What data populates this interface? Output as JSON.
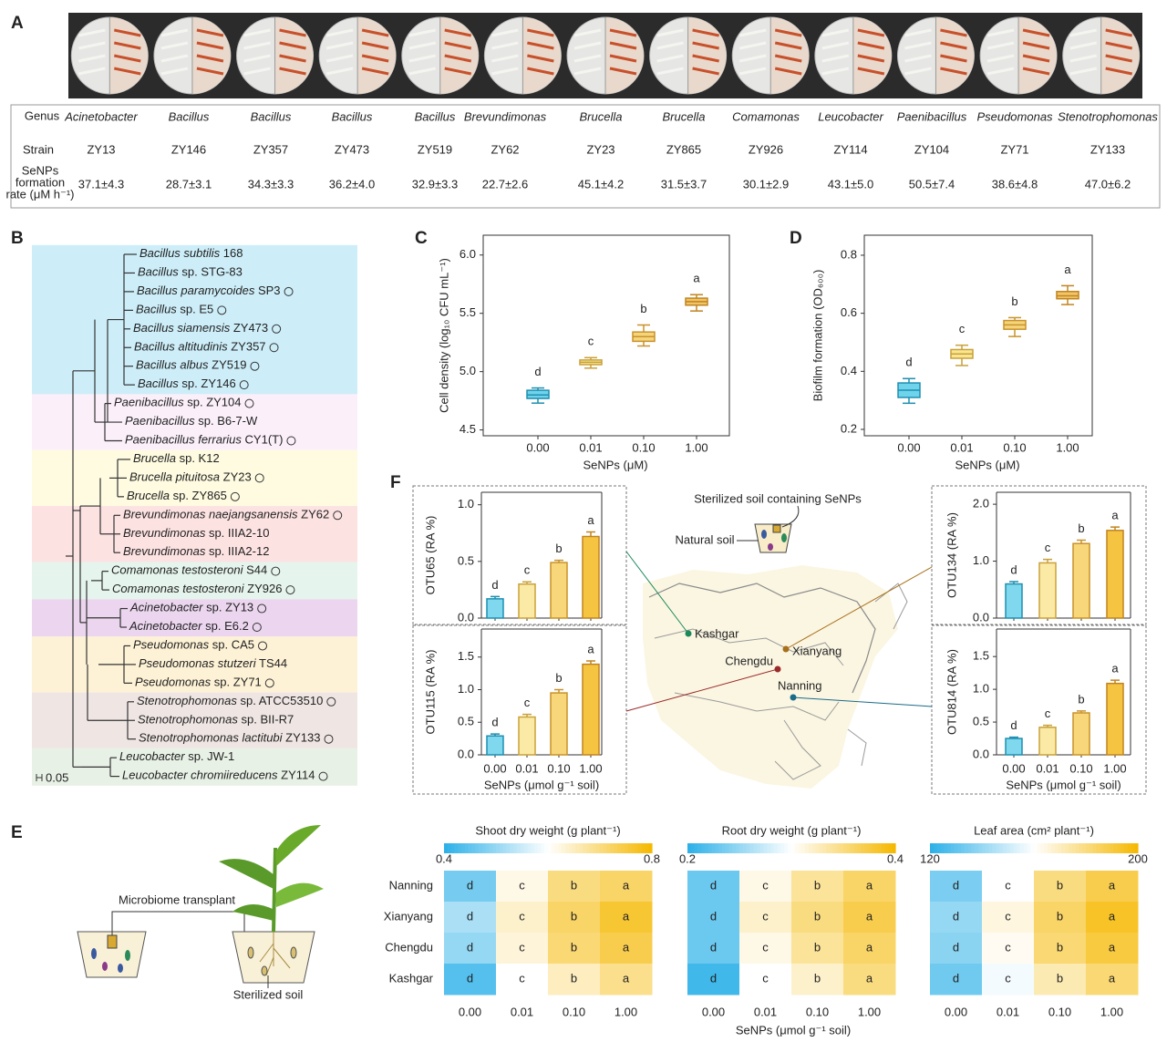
{
  "panel_labels": [
    "A",
    "B",
    "C",
    "D",
    "E",
    "F"
  ],
  "panel_a": {
    "row_headers": {
      "genus": "Genus",
      "strain": "Strain",
      "rate": [
        "SeNPs",
        "formation",
        "rate (μM h⁻¹)"
      ]
    },
    "genus": [
      "Acinetobacter",
      "Bacillus",
      "Bacillus",
      "Bacillus",
      "Bacillus",
      "Brevundimonas",
      "Brucella",
      "Brucella",
      "Comamonas",
      "Leucobacter",
      "Paenibacillus",
      "Pseudomonas",
      "Stenotrophomonas"
    ],
    "strain": [
      "ZY13",
      "ZY146",
      "ZY357",
      "ZY473",
      "ZY519",
      "ZY62",
      "ZY23",
      "ZY865",
      "ZY926",
      "ZY114",
      "ZY104",
      "ZY71",
      "ZY133"
    ],
    "rate": [
      "37.1±4.3",
      "28.7±3.1",
      "34.3±3.3",
      "36.2±4.0",
      "32.9±3.3",
      "22.7±2.6",
      "45.1±4.2",
      "31.5±3.7",
      "30.1±2.9",
      "43.1±5.0",
      "50.5±7.4",
      "38.6±4.8",
      "47.0±6.2"
    ]
  },
  "panel_b": {
    "scale": "0.05",
    "clades": [
      {
        "color": "#cdeef9",
        "taxa": [
          {
            "italic": "Bacillus subtilis",
            "plain": "168",
            "circle": false
          },
          {
            "italic": "Bacillus",
            "plain": "sp. STG-83",
            "circle": false
          },
          {
            "italic": "Bacillus paramycoides",
            "plain": "SP3",
            "circle": true
          },
          {
            "italic": "Bacillus",
            "plain": "sp. E5",
            "circle": true
          },
          {
            "italic": "Bacillus siamensis",
            "plain": "ZY473",
            "circle": true
          },
          {
            "italic": "Bacillus altitudinis",
            "plain": "ZY357",
            "circle": true
          },
          {
            "italic": "Bacillus albus",
            "plain": "ZY519",
            "circle": true
          },
          {
            "italic": "Bacillus",
            "plain": "sp. ZY146",
            "circle": true
          }
        ]
      },
      {
        "color": "#fbf0fa",
        "taxa": [
          {
            "italic": "Paenibacillus",
            "plain": "sp. ZY104",
            "circle": true
          },
          {
            "italic": "Paenibacillus",
            "plain": "sp. B6-7-W",
            "circle": false
          },
          {
            "italic": "Paenibacillus ferrarius",
            "plain": "CY1(T)",
            "circle": true
          }
        ]
      },
      {
        "color": "#fefbe0",
        "taxa": [
          {
            "italic": "Brucella",
            "plain": "sp. K12",
            "circle": false
          },
          {
            "italic": "Brucella pituitosa",
            "plain": "ZY23",
            "circle": true
          },
          {
            "italic": "Brucella",
            "plain": "sp. ZY865",
            "circle": true
          }
        ]
      },
      {
        "color": "#fde2e2",
        "taxa": [
          {
            "italic": "Brevundimonas naejangsanensis",
            "plain": "ZY62",
            "circle": true
          },
          {
            "italic": "Brevundimonas",
            "plain": "sp. IIIA2-10",
            "circle": false
          },
          {
            "italic": "Brevundimonas",
            "plain": "sp. IIIA2-12",
            "circle": false
          }
        ]
      },
      {
        "color": "#e5f4ec",
        "taxa": [
          {
            "italic": "Comamonas testosteroni",
            "plain": "S44",
            "circle": true
          },
          {
            "italic": "Comamonas testosteroni",
            "plain": "ZY926",
            "circle": true
          }
        ]
      },
      {
        "color": "#ecd6ef",
        "taxa": [
          {
            "italic": "Acinetobacter",
            "plain": "sp. ZY13",
            "circle": true
          },
          {
            "italic": "Acinetobacter",
            "plain": "sp. E6.2",
            "circle": true
          }
        ]
      },
      {
        "color": "#fef2d6",
        "taxa": [
          {
            "italic": "Pseudomonas",
            "plain": "sp. CA5",
            "circle": true
          },
          {
            "italic": "Pseudomonas stutzeri",
            "plain": "TS44",
            "circle": false
          },
          {
            "italic": "Pseudomonas",
            "plain": "sp. ZY71",
            "circle": true
          }
        ]
      },
      {
        "color": "#efe6e4",
        "taxa": [
          {
            "italic": "Stenotrophomonas",
            "plain": "sp. ATCC53510",
            "circle": true
          },
          {
            "italic": "Stenotrophomonas",
            "plain": "sp. BII-R7",
            "circle": false
          },
          {
            "italic": "Stenotrophomonas lactitubi",
            "plain": "ZY133",
            "circle": true
          }
        ]
      },
      {
        "color": "#e8f1e6",
        "taxa": [
          {
            "italic": "Leucobacter",
            "plain": "sp. JW-1",
            "circle": false
          },
          {
            "italic": "Leucobacter chromiireducens",
            "plain": "ZY114",
            "circle": true
          }
        ]
      }
    ]
  },
  "map": {
    "sterilized": "Sterilized soil containing SeNPs",
    "natural": "Natural soil",
    "cities": [
      {
        "name": "Kashgar",
        "color": "#1a8a5a"
      },
      {
        "name": "Chengdu",
        "color": "#9b2b2b"
      },
      {
        "name": "Xianyang",
        "color": "#a8701a"
      },
      {
        "name": "Nanning",
        "color": "#1a6a8a"
      }
    ]
  },
  "panel_e": {
    "transplant": "Microbiome transplant",
    "sterilized": "Sterilized soil"
  },
  "heatmap_xlabel": "SeNPs (μmol g⁻¹ soil)",
  "chart_data": [
    {
      "type": "box",
      "ylabel": "Cell density (log₁₀ CFU mL⁻¹)",
      "xlabel": "SeNPs (μM)",
      "categories": [
        "0.00",
        "0.01",
        "0.10",
        "1.00"
      ],
      "min": [
        4.73,
        5.03,
        5.22,
        5.52
      ],
      "q1": [
        4.77,
        5.06,
        5.26,
        5.57
      ],
      "median": [
        4.8,
        5.08,
        5.3,
        5.6
      ],
      "q3": [
        4.84,
        5.1,
        5.34,
        5.63
      ],
      "max": [
        4.86,
        5.12,
        5.4,
        5.66
      ],
      "letters": [
        "d",
        "c",
        "b",
        "a"
      ],
      "colors": [
        "#6fd3ec",
        "#f8e690",
        "#f5d57c",
        "#f2c466"
      ],
      "edge_colors": [
        "#1f8fb0",
        "#c9a13a",
        "#c9922a",
        "#c08420"
      ],
      "ylim": [
        4.45,
        6.17
      ],
      "yticks": [
        4.5,
        {
          "value": 5,
          "label": "5.0"
        },
        5.5,
        {
          "value": 6,
          "label": "6.0"
        }
      ]
    },
    {
      "type": "box",
      "ylabel": "Biofilm formation (OD₆₀₀)",
      "xlabel": "SeNPs (μM)",
      "categories": [
        "0.00",
        "0.01",
        "0.10",
        "1.00"
      ],
      "min": [
        0.29,
        0.42,
        0.52,
        0.63
      ],
      "q1": [
        0.31,
        0.445,
        0.545,
        0.65
      ],
      "median": [
        0.335,
        0.46,
        0.56,
        0.66
      ],
      "q3": [
        0.36,
        0.475,
        0.575,
        0.675
      ],
      "max": [
        0.375,
        0.49,
        0.585,
        0.695
      ],
      "letters": [
        "d",
        "c",
        "b",
        "a"
      ],
      "colors": [
        "#6fd3ec",
        "#f8e690",
        "#f5d57c",
        "#f2c466"
      ],
      "edge_colors": [
        "#1f8fb0",
        "#c9a13a",
        "#c9922a",
        "#c08420"
      ],
      "ylim": [
        0.178,
        0.869
      ],
      "yticks": [
        0.2,
        0.4,
        0.6,
        0.8
      ]
    },
    {
      "type": "bar",
      "ylabel": "OTU65 (RA %)",
      "values": [
        0.17,
        0.3,
        0.49,
        0.72
      ],
      "errors": [
        0.02,
        0.02,
        0.02,
        0.04
      ],
      "letters": [
        "d",
        "c",
        "b",
        "a"
      ],
      "colors": [
        "#7fd8ee",
        "#fbeaa6",
        "#f7d77a",
        "#f5c542"
      ],
      "edge_colors": [
        "#1f8fb0",
        "#c9a13a",
        "#c9922a",
        "#c08420"
      ],
      "ylim": [
        0,
        1.11
      ],
      "yticks": [
        {
          "value": 0,
          "label": "0.0"
        },
        0.5,
        {
          "value": 1,
          "label": "1.0"
        }
      ]
    },
    {
      "type": "bar",
      "ylabel": "OTU115 (RA %)",
      "xlabel": "SeNPs (μmol g⁻¹ soil)",
      "categories": [
        "0.00",
        "0.01",
        "0.10",
        "1.00"
      ],
      "values": [
        0.29,
        0.58,
        0.95,
        1.39
      ],
      "errors": [
        0.03,
        0.04,
        0.05,
        0.05
      ],
      "letters": [
        "d",
        "c",
        "b",
        "a"
      ],
      "colors": [
        "#7fd8ee",
        "#fbeaa6",
        "#f7d77a",
        "#f5c542"
      ],
      "edge_colors": [
        "#1f8fb0",
        "#c9a13a",
        "#c9922a",
        "#c08420"
      ],
      "ylim": [
        0,
        1.93
      ],
      "yticks": [
        {
          "value": 0,
          "label": "0.0"
        },
        0.5,
        {
          "value": 1,
          "label": "1.0"
        },
        1.5
      ]
    },
    {
      "type": "bar",
      "ylabel": "OTU134 (RA %)",
      "values": [
        0.6,
        0.97,
        1.31,
        1.54
      ],
      "errors": [
        0.04,
        0.06,
        0.06,
        0.06
      ],
      "letters": [
        "d",
        "c",
        "b",
        "a"
      ],
      "colors": [
        "#7fd8ee",
        "#fbeaa6",
        "#f7d77a",
        "#f5c542"
      ],
      "edge_colors": [
        "#1f8fb0",
        "#c9a13a",
        "#c9922a",
        "#c08420"
      ],
      "ylim": [
        0,
        2.21
      ],
      "yticks": [
        {
          "value": 0,
          "label": "0.0"
        },
        {
          "value": 1,
          "label": "1.0"
        },
        {
          "value": 2,
          "label": "2.0"
        }
      ]
    },
    {
      "type": "bar",
      "ylabel": "OTU814 (RA %)",
      "xlabel": "SeNPs (μmol g⁻¹ soil)",
      "categories": [
        "0.00",
        "0.01",
        "0.10",
        "1.00"
      ],
      "values": [
        0.25,
        0.42,
        0.64,
        1.09
      ],
      "errors": [
        0.02,
        0.03,
        0.03,
        0.05
      ],
      "letters": [
        "d",
        "c",
        "b",
        "a"
      ],
      "colors": [
        "#7fd8ee",
        "#fbeaa6",
        "#f7d77a",
        "#f5c542"
      ],
      "edge_colors": [
        "#1f8fb0",
        "#c9a13a",
        "#c9922a",
        "#c08420"
      ],
      "ylim": [
        0,
        1.92
      ],
      "yticks": [
        {
          "value": 0,
          "label": "0.0"
        },
        0.5,
        {
          "value": 1,
          "label": "1.0"
        },
        1.5
      ]
    },
    {
      "type": "heatmap",
      "title": "Shoot dry weight (g plant⁻¹)",
      "rows": [
        "Nanning",
        "Xianyang",
        "Chengdu",
        "Kashgar"
      ],
      "columns": [
        "0.00",
        "0.01",
        "0.10",
        "1.00"
      ],
      "values": [
        [
          0.47,
          0.62,
          0.7,
          0.72
        ],
        [
          0.52,
          0.64,
          0.72,
          0.76
        ],
        [
          0.5,
          0.63,
          0.71,
          0.74
        ],
        [
          0.44,
          0.6,
          0.65,
          0.69
        ]
      ],
      "labels": [
        [
          "d",
          "c",
          "b",
          "a"
        ],
        [
          "d",
          "c",
          "b",
          "a"
        ],
        [
          "d",
          "c",
          "b",
          "a"
        ],
        [
          "d",
          "c",
          "b",
          "a"
        ]
      ],
      "clim": [
        0.4,
        0.8
      ],
      "colorbar_ticks": [
        0.4,
        0.8
      ],
      "colors": [
        "#2bb0e8",
        "#ffffff",
        "#f5b800"
      ]
    },
    {
      "type": "heatmap",
      "title": "Root dry weight (g plant⁻¹)",
      "columns": [
        "0.00",
        "0.01",
        "0.10",
        "1.00"
      ],
      "values": [
        [
          0.23,
          0.31,
          0.34,
          0.36
        ],
        [
          0.23,
          0.32,
          0.35,
          0.37
        ],
        [
          0.23,
          0.31,
          0.34,
          0.36
        ],
        [
          0.21,
          0.3,
          0.32,
          0.35
        ]
      ],
      "labels": [
        [
          "d",
          "c",
          "b",
          "a"
        ],
        [
          "d",
          "c",
          "b",
          "a"
        ],
        [
          "d",
          "c",
          "b",
          "a"
        ],
        [
          "d",
          "c",
          "b",
          "a"
        ]
      ],
      "clim": [
        0.2,
        0.4
      ],
      "colorbar_ticks": [
        0.2,
        0.4
      ],
      "colors": [
        "#2bb0e8",
        "#ffffff",
        "#f5b800"
      ]
    },
    {
      "type": "heatmap",
      "title": "Leaf area (cm² plant⁻¹)",
      "columns": [
        "0.00",
        "0.01",
        "0.10",
        "1.00"
      ],
      "values": [
        [
          135,
          160,
          180,
          188
        ],
        [
          140,
          165,
          184,
          194
        ],
        [
          138,
          162,
          182,
          190
        ],
        [
          133,
          158,
          172,
          182
        ]
      ],
      "labels": [
        [
          "d",
          "c",
          "b",
          "a"
        ],
        [
          "d",
          "c",
          "b",
          "a"
        ],
        [
          "d",
          "c",
          "b",
          "a"
        ],
        [
          "d",
          "c",
          "b",
          "a"
        ]
      ],
      "clim": [
        120,
        200
      ],
      "colorbar_ticks": [
        120,
        200
      ],
      "colors": [
        "#2bb0e8",
        "#ffffff",
        "#f5b800"
      ]
    }
  ]
}
